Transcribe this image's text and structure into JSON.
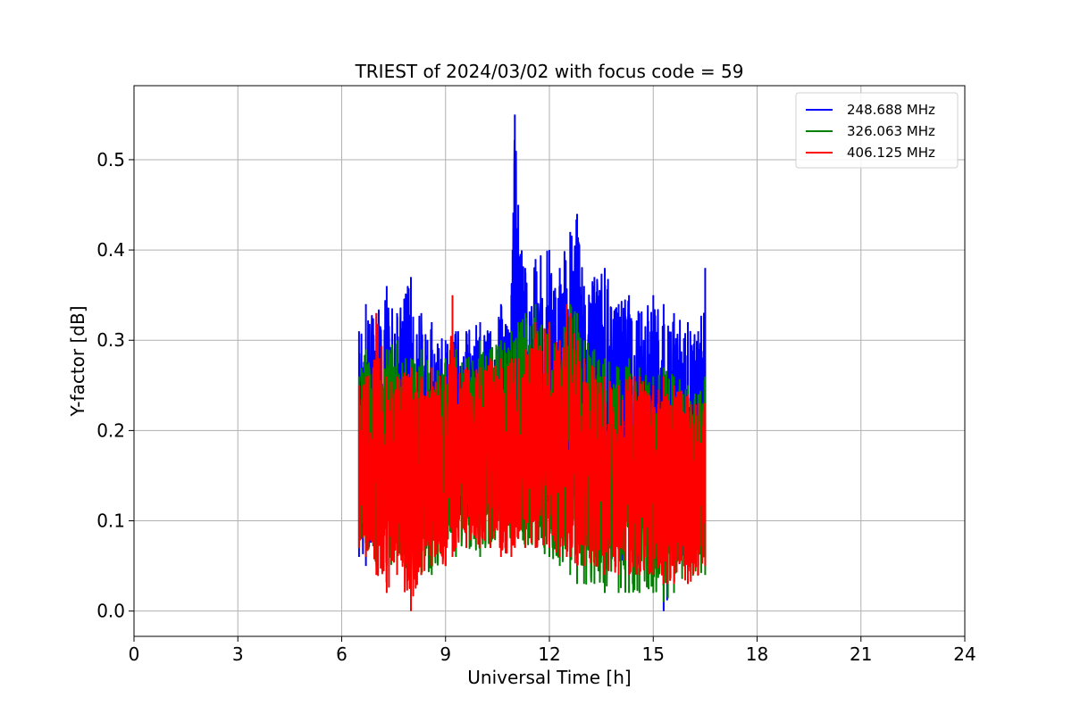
{
  "chart_data": {
    "type": "line",
    "title": "TRIEST of 2024/03/02 with focus code = 59",
    "xlabel": "Universal Time [h]",
    "ylabel": "Y-factor [dB]",
    "xlim": [
      0,
      24
    ],
    "ylim": [
      -0.028,
      0.582
    ],
    "xticks": [
      0,
      3,
      6,
      9,
      12,
      15,
      18,
      21,
      24
    ],
    "xtick_labels": [
      "0",
      "3",
      "6",
      "9",
      "12",
      "15",
      "18",
      "21",
      "24"
    ],
    "yticks": [
      0.0,
      0.1,
      0.2,
      0.3,
      0.4,
      0.5
    ],
    "ytick_labels": [
      "0.0",
      "0.1",
      "0.2",
      "0.3",
      "0.4",
      "0.5"
    ],
    "grid": true,
    "legend_position": "top-right",
    "data_range_h": [
      6.5,
      16.5
    ],
    "series": [
      {
        "name": "248.688 MHz",
        "color": "#0000ff",
        "x": [
          6.5,
          6.7,
          7.0,
          7.3,
          7.6,
          8.0,
          8.3,
          8.6,
          9.0,
          9.3,
          9.6,
          10.0,
          10.3,
          10.6,
          10.9,
          11.0,
          11.1,
          11.3,
          11.6,
          12.0,
          12.3,
          12.6,
          12.8,
          13.0,
          13.3,
          13.6,
          14.0,
          14.3,
          14.6,
          15.0,
          15.3,
          15.6,
          16.0,
          16.3,
          16.5
        ],
        "upper": [
          0.31,
          0.34,
          0.33,
          0.36,
          0.33,
          0.37,
          0.33,
          0.32,
          0.3,
          0.31,
          0.31,
          0.32,
          0.31,
          0.34,
          0.35,
          0.55,
          0.45,
          0.38,
          0.39,
          0.4,
          0.38,
          0.42,
          0.44,
          0.36,
          0.37,
          0.38,
          0.34,
          0.35,
          0.33,
          0.35,
          0.34,
          0.33,
          0.32,
          0.31,
          0.38
        ],
        "lower": [
          0.06,
          0.05,
          0.07,
          0.08,
          0.07,
          0.08,
          0.09,
          0.08,
          0.09,
          0.09,
          0.1,
          0.1,
          0.11,
          0.1,
          0.1,
          0.11,
          0.11,
          0.11,
          0.1,
          0.1,
          0.09,
          0.08,
          0.08,
          0.07,
          0.07,
          0.06,
          0.05,
          0.05,
          0.05,
          0.04,
          0.0,
          0.03,
          0.04,
          0.05,
          0.06
        ]
      },
      {
        "name": "326.063 MHz",
        "color": "#008000",
        "x": [
          6.5,
          6.7,
          7.0,
          7.3,
          7.6,
          8.0,
          8.3,
          8.6,
          9.0,
          9.3,
          9.6,
          10.0,
          10.3,
          10.6,
          10.9,
          11.0,
          11.1,
          11.3,
          11.6,
          12.0,
          12.3,
          12.6,
          12.8,
          13.0,
          13.3,
          13.6,
          14.0,
          14.3,
          14.6,
          15.0,
          15.3,
          15.6,
          16.0,
          16.3,
          16.5
        ],
        "upper": [
          0.26,
          0.29,
          0.28,
          0.29,
          0.3,
          0.28,
          0.29,
          0.27,
          0.28,
          0.29,
          0.28,
          0.3,
          0.29,
          0.3,
          0.31,
          0.3,
          0.32,
          0.33,
          0.34,
          0.32,
          0.3,
          0.34,
          0.33,
          0.3,
          0.29,
          0.28,
          0.27,
          0.28,
          0.27,
          0.26,
          0.27,
          0.26,
          0.25,
          0.24,
          0.26
        ],
        "lower": [
          0.07,
          0.06,
          0.05,
          0.05,
          0.05,
          0.04,
          0.04,
          0.04,
          0.05,
          0.06,
          0.07,
          0.06,
          0.07,
          0.07,
          0.08,
          0.08,
          0.08,
          0.07,
          0.07,
          0.06,
          0.05,
          0.04,
          0.03,
          0.03,
          0.03,
          0.02,
          0.02,
          0.02,
          0.02,
          0.02,
          0.01,
          0.02,
          0.03,
          0.04,
          0.04
        ]
      },
      {
        "name": "406.125 MHz",
        "color": "#ff0000",
        "x": [
          6.5,
          6.7,
          7.0,
          7.3,
          7.6,
          8.0,
          8.3,
          8.6,
          9.0,
          9.2,
          9.3,
          9.6,
          10.0,
          10.3,
          10.6,
          10.9,
          11.0,
          11.1,
          11.3,
          11.6,
          12.0,
          12.3,
          12.5,
          12.6,
          12.8,
          13.0,
          13.3,
          13.6,
          14.0,
          14.3,
          14.6,
          15.0,
          15.3,
          15.6,
          16.0,
          16.3,
          16.5
        ],
        "upper": [
          0.25,
          0.26,
          0.33,
          0.26,
          0.26,
          0.27,
          0.26,
          0.27,
          0.26,
          0.35,
          0.27,
          0.27,
          0.27,
          0.28,
          0.28,
          0.28,
          0.28,
          0.28,
          0.29,
          0.32,
          0.32,
          0.3,
          0.34,
          0.33,
          0.3,
          0.28,
          0.27,
          0.26,
          0.25,
          0.26,
          0.26,
          0.25,
          0.26,
          0.25,
          0.24,
          0.23,
          0.23
        ],
        "lower": [
          0.07,
          0.06,
          0.04,
          0.02,
          0.04,
          0.0,
          0.04,
          0.05,
          0.05,
          0.06,
          0.07,
          0.07,
          0.07,
          0.07,
          0.06,
          0.06,
          0.07,
          0.08,
          0.07,
          0.07,
          0.07,
          0.06,
          0.06,
          0.06,
          0.05,
          0.05,
          0.05,
          0.04,
          0.04,
          0.04,
          0.04,
          0.04,
          0.03,
          0.03,
          0.03,
          0.04,
          0.05
        ]
      }
    ]
  }
}
